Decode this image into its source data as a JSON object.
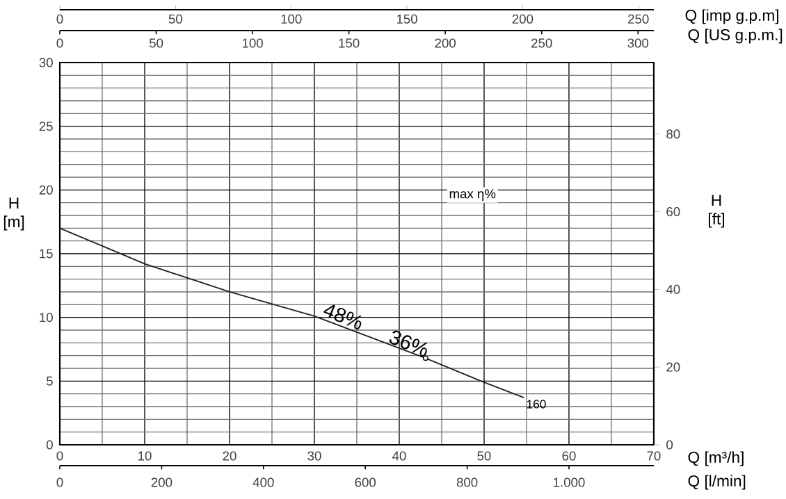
{
  "chart_data": {
    "type": "line",
    "x": [
      0,
      5,
      10,
      20,
      30,
      43.1,
      50,
      54.7
    ],
    "series": [
      {
        "color": "#222222",
        "values": [
          17,
          15.6,
          14.2,
          12.0,
          10.1,
          6.8,
          4.9,
          3.7
        ]
      }
    ],
    "xlim": [
      0,
      70
    ],
    "xticks": [
      0,
      10,
      20,
      30,
      40,
      50,
      60,
      70
    ],
    "xlabel": "Q [m³/h]",
    "ylim": [
      0,
      30
    ],
    "yticks": [
      0,
      5,
      10,
      15,
      20,
      25,
      30
    ],
    "ylabel": "H [m]",
    "y2lim": [
      0,
      98.4
    ],
    "y2ticks": [
      0,
      20,
      40,
      60,
      80
    ],
    "y2label": "H [ft]",
    "x2lim": [
      0,
      256.7
    ],
    "x2ticks": [
      0,
      50,
      100,
      150,
      200,
      250
    ],
    "x2label": "Q [imp g.p.m]",
    "grid": true,
    "annotations": [
      {
        "text": "48%",
        "x": 33,
        "y": 9.4
      },
      {
        "text": "36%",
        "x": 43.1,
        "y": 6.8
      },
      {
        "text": "160",
        "x": 54.7,
        "y": 3.7
      },
      "max η%",
      "Q [US g.p.m.]",
      "0",
      "50",
      "100",
      "150",
      "200",
      "250",
      "300",
      "Q [l/min]",
      "0",
      "200",
      "400",
      "600",
      "800",
      "1.000"
    ]
  }
}
